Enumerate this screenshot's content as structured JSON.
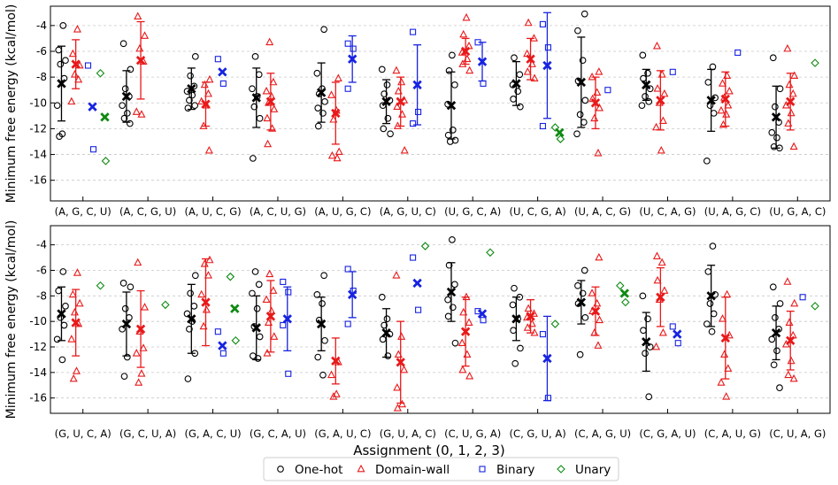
{
  "chart_data": [
    {
      "type": "scatter",
      "panel": "top",
      "ylabel": "Minimum free energy (kcal/mol)",
      "xlabel": "",
      "ylim": [
        -17.6,
        -2.5
      ],
      "yticks": [
        -4,
        -6,
        -8,
        -10,
        -12,
        -14,
        -16
      ],
      "grid": "horizontal dashed",
      "categories": [
        "(A, G, C, U)",
        "(A, C, G, U)",
        "(A, U, C, G)",
        "(A, C, U, G)",
        "(A, U, G, C)",
        "(A, G, U, C)",
        "(U, G, C, A)",
        "(U, C, G, A)",
        "(U, A, C, G)",
        "(U, C, A, G)",
        "(U, A, G, C)",
        "(U, G, A, C)"
      ],
      "series": [
        {
          "name": "One-hot",
          "color": "#000000",
          "points": [
            [
              -4.0,
              -5.9,
              -6.7,
              -7.0,
              -8.1,
              -10.2,
              -12.4,
              -12.6
            ],
            [
              -5.4,
              -7.4,
              -8.9,
              -9.5,
              -10.2,
              -10.8,
              -11.2,
              -11.6
            ],
            [
              -6.4,
              -7.9,
              -8.7,
              -9.1,
              -9.4,
              -9.8,
              -10.2,
              -10.4
            ],
            [
              -6.4,
              -7.8,
              -8.9,
              -9.5,
              -10.3,
              -11.2,
              -14.3
            ],
            [
              -4.3,
              -7.7,
              -8.9,
              -9.3,
              -9.9,
              -10.4,
              -10.8,
              -11.8
            ],
            [
              -7.4,
              -8.6,
              -9.3,
              -9.8,
              -10.2,
              -11.2,
              -12.0,
              -12.4
            ],
            [
              -6.3,
              -7.5,
              -8.6,
              -10.1,
              -12.1,
              -12.5,
              -12.9,
              -13.0
            ],
            [
              -6.5,
              -7.8,
              -8.6,
              -9.1,
              -9.7,
              -10.3
            ],
            [
              -3.1,
              -4.4,
              -6.7,
              -8.3,
              -9.8,
              -10.9,
              -11.5,
              -12.4
            ],
            [
              -6.3,
              -7.7,
              -8.1,
              -8.9,
              -9.5,
              -9.9,
              -10.2
            ],
            [
              -7.2,
              -8.4,
              -9.6,
              -10.2,
              -10.8,
              -14.5
            ],
            [
              -6.5,
              -8.9,
              -10.3,
              -11.5,
              -12.3,
              -12.7,
              -13.4,
              -13.5
            ]
          ],
          "mean": [
            -8.5,
            -9.5,
            -8.9,
            -9.6,
            -9.2,
            -9.9,
            -10.2,
            -8.5,
            -8.4,
            -8.6,
            -9.8,
            -11.1
          ],
          "err": [
            2.9,
            2.0,
            1.6,
            2.3,
            2.3,
            1.7,
            2.6,
            1.7,
            3.5,
            1.2,
            2.4,
            2.4
          ]
        },
        {
          "name": "Domain-wall",
          "color": "#e8191a",
          "points": [
            [
              -4.3,
              -6.2,
              -7.1,
              -7.8,
              -8.2,
              -9.9
            ],
            [
              -3.3,
              -4.8,
              -5.8,
              -6.8,
              -10.7,
              -10.9
            ],
            [
              -8.2,
              -8.6,
              -9.3,
              -9.9,
              -10.2,
              -11.8,
              -13.7
            ],
            [
              -5.3,
              -8.4,
              -9.1,
              -9.5,
              -10.0,
              -10.5,
              -11.2,
              -12.0,
              -13.2
            ],
            [
              -8.1,
              -9.4,
              -10.6,
              -11.3,
              -13.8,
              -14.1,
              -14.3
            ],
            [
              -7.5,
              -8.4,
              -9.1,
              -9.8,
              -10.3,
              -10.9,
              -11.8,
              -13.7
            ],
            [
              -3.4,
              -4.7,
              -5.6,
              -6.1,
              -6.6,
              -7.0,
              -7.5
            ],
            [
              -3.8,
              -5.0,
              -6.2,
              -7.0,
              -7.6,
              -8.1
            ],
            [
              -7.6,
              -8.0,
              -9.2,
              -9.7,
              -10.4,
              -11.2,
              -13.9
            ],
            [
              -5.6,
              -7.8,
              -8.9,
              -9.3,
              -10.0,
              -11.4,
              -11.9,
              -13.7
            ],
            [
              -7.9,
              -8.5,
              -9.1,
              -9.6,
              -10.2,
              -10.6,
              -10.9,
              -11.7
            ],
            [
              -5.8,
              -7.9,
              -8.6,
              -9.3,
              -10.2,
              -10.8,
              -11.6,
              -13.4
            ]
          ],
          "mean": [
            -7.0,
            -6.7,
            -10.1,
            -9.9,
            -10.8,
            -9.9,
            -6.0,
            -6.6,
            -10.0,
            -9.8,
            -9.7,
            -9.9
          ],
          "err": [
            1.9,
            3.0,
            1.7,
            2.2,
            2.4,
            1.9,
            1.0,
            1.6,
            2.0,
            2.3,
            2.1,
            2.2
          ]
        },
        {
          "name": "Binary",
          "color": "#1723e0",
          "points": [
            [
              -7.1,
              -13.6
            ],
            null,
            [
              -6.6,
              -8.5
            ],
            null,
            [
              -5.4,
              -5.8,
              -8.9
            ],
            [
              -4.5,
              -10.7,
              -11.6
            ],
            [
              -5.3,
              -8.5
            ],
            [
              -3.9,
              -5.7,
              -11.8
            ],
            [
              -9.0
            ],
            [
              -7.6
            ],
            [
              -6.1
            ],
            null
          ],
          "mean": [
            -10.3,
            null,
            -7.6,
            null,
            -6.6,
            -8.6,
            -6.8,
            -7.1,
            null,
            null,
            null,
            null
          ],
          "err": [
            null,
            null,
            null,
            null,
            1.8,
            3.1,
            1.5,
            4.1,
            null,
            null,
            null,
            null
          ]
        },
        {
          "name": "Unary",
          "color": "#0f8a12",
          "points": [
            [
              -7.7,
              -14.5
            ],
            null,
            null,
            null,
            null,
            null,
            null,
            [
              -11.9,
              -12.8
            ],
            null,
            null,
            null,
            [
              -6.9
            ]
          ],
          "mean": [
            -11.1,
            null,
            null,
            null,
            null,
            null,
            null,
            -12.3,
            null,
            null,
            null,
            null
          ],
          "err": [
            null,
            null,
            null,
            null,
            null,
            null,
            null,
            null,
            null,
            null,
            null,
            null
          ]
        }
      ]
    },
    {
      "type": "scatter",
      "panel": "bottom",
      "ylabel": "Minimum free energy (kcal/mol)",
      "xlabel": "Assignment (0, 1, 2, 3)",
      "ylim": [
        -17.2,
        -2.5
      ],
      "yticks": [
        -4,
        -6,
        -8,
        -10,
        -12,
        -14,
        -16
      ],
      "grid": "horizontal dashed",
      "categories": [
        "(G, U, C, A)",
        "(G, C, U, A)",
        "(G, A, C, U)",
        "(G, C, A, U)",
        "(G, A, U, C)",
        "(G, U, A, C)",
        "(C, U, G, A)",
        "(C, G, U, A)",
        "(C, A, G, U)",
        "(C, G, A, U)",
        "(C, A, U, G)",
        "(C, U, A, G)"
      ],
      "series": [
        {
          "name": "One-hot",
          "color": "#000000",
          "points": [
            [
              -6.1,
              -7.6,
              -8.8,
              -9.7,
              -10.3,
              -11.4,
              -13.0
            ],
            [
              -7.0,
              -7.3,
              -9.0,
              -9.7,
              -10.6,
              -12.8,
              -14.3
            ],
            [
              -6.4,
              -7.8,
              -8.8,
              -9.4,
              -10.0,
              -10.6,
              -12.5,
              -14.5
            ],
            [
              -6.1,
              -7.1,
              -7.8,
              -9.0,
              -10.4,
              -11.2,
              -12.7,
              -12.9
            ],
            [
              -6.4,
              -7.9,
              -8.6,
              -9.9,
              -11.5,
              -12.8,
              -14.2
            ],
            [
              -8.1,
              -9.8,
              -10.3,
              -11.0,
              -11.4,
              -12.7
            ],
            [
              -3.6,
              -5.6,
              -7.1,
              -8.3,
              -8.9,
              -9.6,
              -11.7
            ],
            [
              -7.4,
              -8.1,
              -8.7,
              -9.8,
              -10.7,
              -12.1,
              -13.3
            ],
            [
              -6.0,
              -7.2,
              -7.8,
              -8.6,
              -9.7,
              -12.6
            ],
            [
              -8.0,
              -9.8,
              -10.7,
              -12.0,
              -12.5,
              -15.9
            ],
            [
              -4.1,
              -6.1,
              -7.9,
              -8.6,
              -9.4,
              -10.2,
              -10.8
            ],
            [
              -7.3,
              -8.6,
              -9.7,
              -10.6,
              -11.4,
              -12.3,
              -13.4,
              -15.2
            ]
          ],
          "mean": [
            -9.4,
            -10.2,
            -9.8,
            -10.5,
            -10.2,
            -10.9,
            -7.7,
            -9.8,
            -8.5,
            -11.6,
            -8.0,
            -10.9
          ],
          "err": [
            2.1,
            2.5,
            2.7,
            2.5,
            2.1,
            1.9,
            2.3,
            1.7,
            1.7,
            2.3,
            2.4,
            2.1
          ]
        },
        {
          "name": "Domain-wall",
          "color": "#e8191a",
          "points": [
            [
              -6.2,
              -7.9,
              -8.6,
              -9.3,
              -10.2,
              -11.4,
              -13.9,
              -14.5
            ],
            [
              -5.4,
              -8.9,
              -10.8,
              -12.1,
              -12.5,
              -14.1,
              -14.8
            ],
            [
              -5.2,
              -5.5,
              -6.4,
              -7.9,
              -9.1,
              -10.4
            ],
            [
              -6.3,
              -7.6,
              -8.3,
              -9.2,
              -10.1,
              -11.2,
              -12.5
            ],
            [
              -13.2,
              -14.2,
              -15.7,
              -15.9
            ],
            [
              -6.4,
              -11.2,
              -12.6,
              -13.8,
              -15.2,
              -16.5,
              -16.8
            ],
            [
              -8.1,
              -9.3,
              -10.1,
              -11.7,
              -12.6,
              -13.8,
              -14.3
            ],
            [
              -9.0,
              -9.4,
              -9.7,
              -10.2,
              -10.5,
              -10.9
            ],
            [
              -5.0,
              -7.8,
              -8.6,
              -9.2,
              -9.9,
              -10.9,
              -11.9
            ],
            [
              -4.9,
              -5.4,
              -6.8,
              -7.6,
              -8.3,
              -10.9,
              -12.0
            ],
            [
              -7.9,
              -9.8,
              -11.1,
              -12.6,
              -13.7,
              -14.8,
              -15.9
            ],
            [
              -6.9,
              -8.6,
              -10.1,
              -11.1,
              -11.8,
              -13.1,
              -14.2,
              -14.5
            ]
          ],
          "mean": [
            -10.1,
            -10.6,
            -8.5,
            -9.6,
            -13.1,
            -13.2,
            -10.8,
            -9.6,
            -9.2,
            -8.1,
            -11.3,
            -11.5
          ],
          "err": [
            2.6,
            3.0,
            3.4,
            2.8,
            1.8,
            3.2,
            2.7,
            1.3,
            1.9,
            2.3,
            3.2,
            2.3
          ]
        },
        {
          "name": "Binary",
          "color": "#1723e0",
          "points": [
            null,
            null,
            [
              -10.8,
              -12.5
            ],
            [
              -6.9,
              -7.7,
              -10.3,
              -14.1
            ],
            [
              -5.9,
              -7.6,
              -10.2
            ],
            [
              -5.0,
              -9.1
            ],
            [
              -9.2,
              -9.9
            ],
            [
              -11.0,
              -16.0
            ],
            null,
            [
              -10.4,
              -11.7
            ],
            null,
            [
              -8.1
            ]
          ],
          "mean": [
            null,
            null,
            -11.9,
            -9.8,
            -7.9,
            -7.0,
            -9.4,
            -12.9,
            null,
            -11.0,
            null,
            null
          ],
          "err": [
            null,
            null,
            null,
            2.5,
            1.8,
            null,
            null,
            3.3,
            null,
            null,
            null,
            null
          ]
        },
        {
          "name": "Unary",
          "color": "#0f8a12",
          "points": [
            [
              -7.2
            ],
            [
              -8.7
            ],
            [
              -6.5,
              -11.5
            ],
            null,
            null,
            [
              -4.1
            ],
            [
              -4.6
            ],
            [
              -10.2
            ],
            [
              -7.2,
              -8.5
            ],
            null,
            null,
            [
              -8.8
            ]
          ],
          "mean": [
            null,
            null,
            -9.0,
            null,
            null,
            null,
            null,
            null,
            -7.8,
            null,
            null,
            null
          ],
          "err": [
            null,
            null,
            null,
            null,
            null,
            null,
            null,
            null,
            null,
            null,
            null,
            null
          ]
        }
      ]
    }
  ],
  "legend": {
    "placement": "bottom-center",
    "items": [
      {
        "label": "One-hot",
        "marker": "circle",
        "color": "#000000"
      },
      {
        "label": "Domain-wall",
        "marker": "triangle",
        "color": "#e8191a"
      },
      {
        "label": "Binary",
        "marker": "square",
        "color": "#1723e0"
      },
      {
        "label": "Unary",
        "marker": "diamond",
        "color": "#0f8a12"
      }
    ]
  }
}
